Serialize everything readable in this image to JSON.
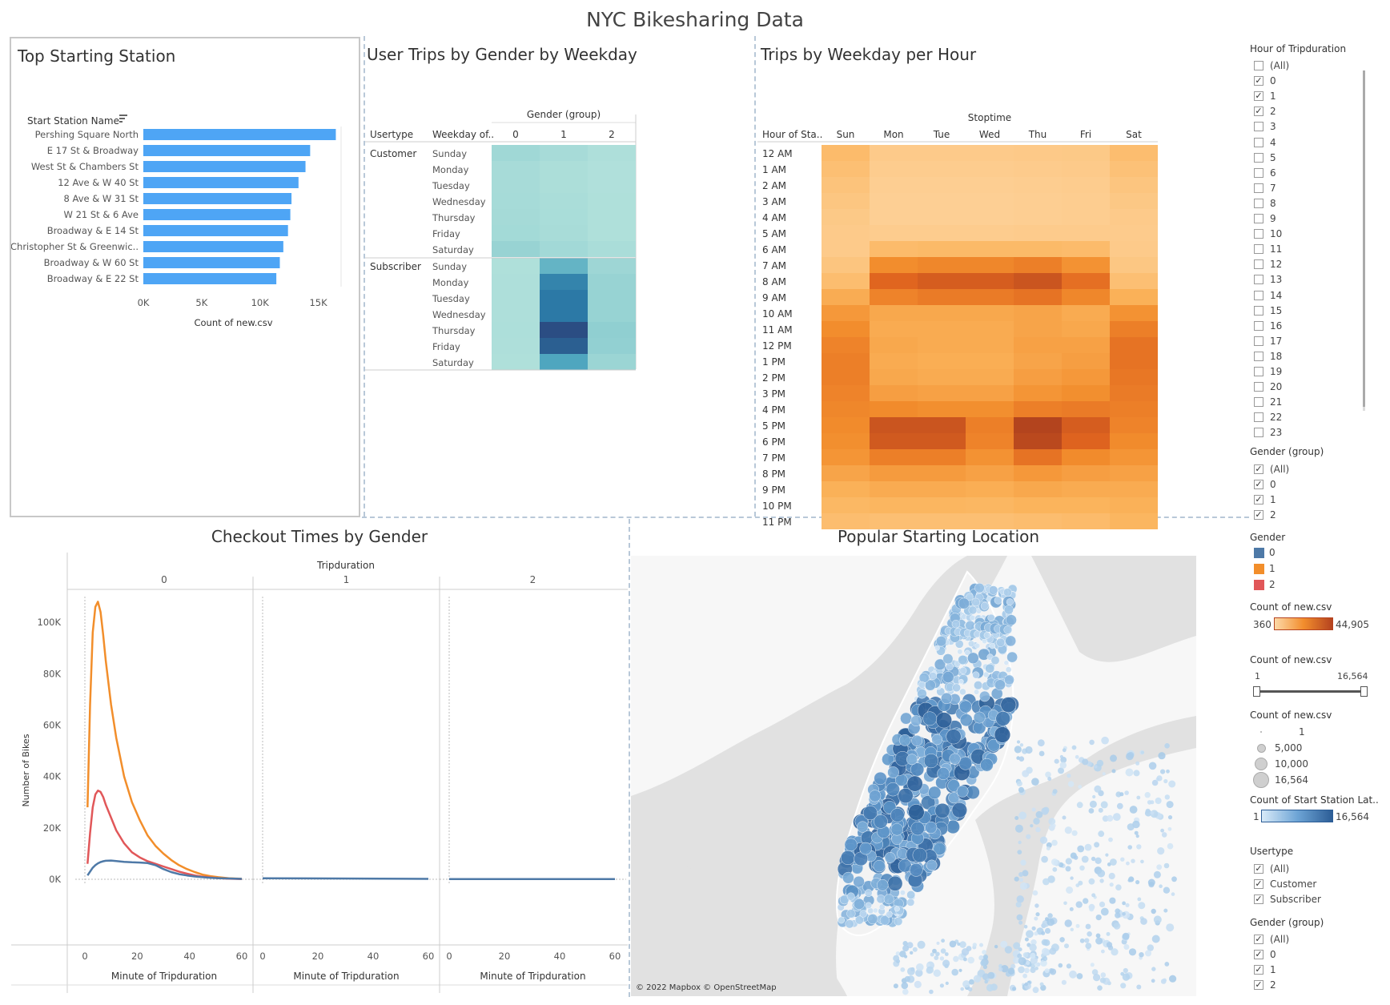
{
  "dashboard_title": "NYC Bikesharing Data",
  "panels": {
    "top_station": {
      "title": "Top Starting Station",
      "header": "Start Station Name",
      "xlabel": "Count of new.csv"
    },
    "gender_weekday": {
      "title": "User Trips by Gender by Weekday",
      "col_group_header": "Gender (group)",
      "row_header_1": "Usertype",
      "row_header_2": "Weekday of..",
      "columns": [
        "0",
        "1",
        "2"
      ],
      "usertypes": [
        "Customer",
        "Subscriber"
      ],
      "weekdays": [
        "Sunday",
        "Monday",
        "Tuesday",
        "Wednesday",
        "Thursday",
        "Friday",
        "Saturday"
      ]
    },
    "weekday_hour": {
      "title": "Trips by Weekday per Hour",
      "col_header": "Stoptime",
      "row_header": "Hour of Sta..",
      "days": [
        "Sun",
        "Mon",
        "Tue",
        "Wed",
        "Thu",
        "Fri",
        "Sat"
      ],
      "hours": [
        "12 AM",
        "1 AM",
        "2 AM",
        "3 AM",
        "4 AM",
        "5 AM",
        "6 AM",
        "7 AM",
        "8 AM",
        "9 AM",
        "10 AM",
        "11 AM",
        "12 PM",
        "1 PM",
        "2 PM",
        "3 PM",
        "4 PM",
        "5 PM",
        "6 PM",
        "7 PM",
        "8 PM",
        "9 PM",
        "10 PM",
        "11 PM"
      ]
    },
    "checkout": {
      "title": "Checkout Times by Gender",
      "col_header": "Tripduration",
      "facets": [
        "0",
        "1",
        "2"
      ],
      "xlabel": "Minute of Tripduration",
      "ylabel": "Number of Bikes",
      "yticks": [
        "0K",
        "20K",
        "40K",
        "60K",
        "80K",
        "100K"
      ],
      "xticks": [
        "0",
        "20",
        "40",
        "60"
      ]
    },
    "map": {
      "title": "Popular Starting Location",
      "attribution": "© 2022 Mapbox © OpenStreetMap",
      "water_color": "#e1e1e1",
      "land_color": "#f7f7f7"
    }
  },
  "sidebar": {
    "hour_filter": {
      "title": "Hour of Tripduration",
      "items": [
        {
          "label": "(All)",
          "checked": false
        },
        {
          "label": "0",
          "checked": true
        },
        {
          "label": "1",
          "checked": true
        },
        {
          "label": "2",
          "checked": true
        },
        {
          "label": "3",
          "checked": false
        },
        {
          "label": "4",
          "checked": false
        },
        {
          "label": "5",
          "checked": false
        },
        {
          "label": "6",
          "checked": false
        },
        {
          "label": "7",
          "checked": false
        },
        {
          "label": "8",
          "checked": false
        },
        {
          "label": "9",
          "checked": false
        },
        {
          "label": "10",
          "checked": false
        },
        {
          "label": "11",
          "checked": false
        },
        {
          "label": "12",
          "checked": false
        },
        {
          "label": "13",
          "checked": false
        },
        {
          "label": "14",
          "checked": false
        },
        {
          "label": "15",
          "checked": false
        },
        {
          "label": "16",
          "checked": false
        },
        {
          "label": "17",
          "checked": false
        },
        {
          "label": "18",
          "checked": false
        },
        {
          "label": "19",
          "checked": false
        },
        {
          "label": "20",
          "checked": false
        },
        {
          "label": "21",
          "checked": false
        },
        {
          "label": "22",
          "checked": false
        },
        {
          "label": "23",
          "checked": false
        }
      ]
    },
    "gender_filter_1": {
      "title": "Gender (group)",
      "items": [
        {
          "label": "(All)",
          "checked": true
        },
        {
          "label": "0",
          "checked": true
        },
        {
          "label": "1",
          "checked": true
        },
        {
          "label": "2",
          "checked": true
        }
      ]
    },
    "gender_legend": {
      "title": "Gender",
      "items": [
        {
          "label": "0",
          "color": "#4e79a7"
        },
        {
          "label": "1",
          "color": "#f28e2b"
        },
        {
          "label": "2",
          "color": "#e15759"
        }
      ]
    },
    "count_orange_legend": {
      "title": "Count of new.csv",
      "min": "360",
      "max": "44,905"
    },
    "count_slider": {
      "title": "Count of new.csv",
      "min": "1",
      "max": "16,564"
    },
    "count_size_legend": {
      "title": "Count of new.csv",
      "items": [
        "1",
        "5,000",
        "10,000",
        "16,564"
      ]
    },
    "start_lat_legend": {
      "title": "Count of Start Station Lat..",
      "min": "1",
      "max": "16,564"
    },
    "usertype_filter": {
      "title": "Usertype",
      "items": [
        {
          "label": "(All)",
          "checked": true
        },
        {
          "label": "Customer",
          "checked": true
        },
        {
          "label": "Subscriber",
          "checked": true
        }
      ]
    },
    "gender_filter_2": {
      "title": "Gender (group)",
      "items": [
        {
          "label": "(All)",
          "checked": true
        },
        {
          "label": "0",
          "checked": true
        },
        {
          "label": "1",
          "checked": true
        },
        {
          "label": "2",
          "checked": true
        }
      ]
    }
  },
  "chart_data": [
    {
      "type": "bar",
      "title": "Top Starting Station",
      "categories": [
        "Pershing Square North",
        "E 17 St & Broadway",
        "West St & Chambers St",
        "12 Ave & W 40 St",
        "8 Ave & W 31 St",
        "W 21 St & 6 Ave",
        "Broadway & E 14 St",
        "Christopher St & Greenwic..",
        "Broadway & W 60 St",
        "Broadway & E 22 St"
      ],
      "values": [
        16500,
        14300,
        13900,
        13300,
        12700,
        12600,
        12400,
        12000,
        11700,
        11400
      ],
      "xlabel": "Count of new.csv",
      "ylabel": "Start Station Name",
      "xticks": [
        "0K",
        "5K",
        "10K",
        "15K"
      ],
      "xlim": [
        0,
        17500
      ],
      "color": "#4ea5f5"
    },
    {
      "type": "heatmap",
      "title": "User Trips by Gender by Weekday",
      "rows": [
        "Customer Sunday",
        "Customer Monday",
        "Customer Tuesday",
        "Customer Wednesday",
        "Customer Thursday",
        "Customer Friday",
        "Customer Saturday",
        "Subscriber Sunday",
        "Subscriber Monday",
        "Subscriber Tuesday",
        "Subscriber Wednesday",
        "Subscriber Thursday",
        "Subscriber Friday",
        "Subscriber Saturday"
      ],
      "columns": [
        "0",
        "1",
        "2"
      ],
      "intensity": [
        [
          0.18,
          0.12,
          0.06
        ],
        [
          0.12,
          0.08,
          0.04
        ],
        [
          0.12,
          0.08,
          0.04
        ],
        [
          0.13,
          0.09,
          0.05
        ],
        [
          0.14,
          0.1,
          0.05
        ],
        [
          0.15,
          0.11,
          0.05
        ],
        [
          0.25,
          0.16,
          0.09
        ],
        [
          0.05,
          0.5,
          0.2
        ],
        [
          0.06,
          0.75,
          0.25
        ],
        [
          0.06,
          0.8,
          0.26
        ],
        [
          0.06,
          0.8,
          0.26
        ],
        [
          0.07,
          1.0,
          0.32
        ],
        [
          0.06,
          0.92,
          0.3
        ],
        [
          0.05,
          0.58,
          0.22
        ]
      ]
    },
    {
      "type": "heatmap",
      "title": "Trips by Weekday per Hour",
      "rows": [
        "12 AM",
        "1 AM",
        "2 AM",
        "3 AM",
        "4 AM",
        "5 AM",
        "6 AM",
        "7 AM",
        "8 AM",
        "9 AM",
        "10 AM",
        "11 AM",
        "12 PM",
        "1 PM",
        "2 PM",
        "3 PM",
        "4 PM",
        "5 PM",
        "6 PM",
        "7 PM",
        "8 PM",
        "9 PM",
        "10 PM",
        "11 PM"
      ],
      "columns": [
        "Sun",
        "Mon",
        "Tue",
        "Wed",
        "Thu",
        "Fri",
        "Sat"
      ],
      "intensity": [
        [
          0.22,
          0.06,
          0.06,
          0.06,
          0.07,
          0.08,
          0.2
        ],
        [
          0.18,
          0.04,
          0.04,
          0.04,
          0.05,
          0.06,
          0.16
        ],
        [
          0.14,
          0.02,
          0.02,
          0.02,
          0.03,
          0.04,
          0.12
        ],
        [
          0.11,
          0.01,
          0.01,
          0.01,
          0.02,
          0.03,
          0.09
        ],
        [
          0.08,
          0.01,
          0.01,
          0.01,
          0.02,
          0.03,
          0.06
        ],
        [
          0.06,
          0.04,
          0.04,
          0.04,
          0.05,
          0.05,
          0.05
        ],
        [
          0.06,
          0.22,
          0.24,
          0.24,
          0.24,
          0.22,
          0.06
        ],
        [
          0.12,
          0.55,
          0.58,
          0.58,
          0.62,
          0.52,
          0.1
        ],
        [
          0.2,
          0.75,
          0.8,
          0.8,
          0.85,
          0.7,
          0.18
        ],
        [
          0.35,
          0.6,
          0.64,
          0.64,
          0.68,
          0.58,
          0.32
        ],
        [
          0.48,
          0.38,
          0.38,
          0.38,
          0.4,
          0.36,
          0.52
        ],
        [
          0.55,
          0.36,
          0.36,
          0.36,
          0.4,
          0.38,
          0.62
        ],
        [
          0.6,
          0.38,
          0.36,
          0.36,
          0.42,
          0.42,
          0.68
        ],
        [
          0.62,
          0.36,
          0.34,
          0.34,
          0.4,
          0.44,
          0.68
        ],
        [
          0.62,
          0.38,
          0.36,
          0.36,
          0.44,
          0.48,
          0.66
        ],
        [
          0.6,
          0.44,
          0.42,
          0.42,
          0.5,
          0.54,
          0.64
        ],
        [
          0.58,
          0.56,
          0.54,
          0.54,
          0.62,
          0.64,
          0.62
        ],
        [
          0.56,
          0.85,
          0.85,
          0.62,
          0.95,
          0.8,
          0.6
        ],
        [
          0.54,
          0.82,
          0.82,
          0.6,
          0.92,
          0.76,
          0.56
        ],
        [
          0.5,
          0.62,
          0.62,
          0.52,
          0.68,
          0.56,
          0.5
        ],
        [
          0.4,
          0.46,
          0.46,
          0.42,
          0.48,
          0.44,
          0.42
        ],
        [
          0.32,
          0.36,
          0.36,
          0.34,
          0.38,
          0.36,
          0.36
        ],
        [
          0.26,
          0.28,
          0.28,
          0.27,
          0.3,
          0.3,
          0.32
        ],
        [
          0.2,
          0.18,
          0.18,
          0.18,
          0.2,
          0.22,
          0.28
        ]
      ]
    },
    {
      "type": "line",
      "title": "Checkout Times by Gender",
      "xlabel": "Minute of Tripduration",
      "ylabel": "Number of Bikes",
      "xlim": [
        0,
        60
      ],
      "ylim": [
        0,
        110000
      ],
      "facets": [
        {
          "name": "0",
          "series": [
            {
              "name": "1",
              "color": "#f28e2b",
              "x": [
                1,
                2,
                3,
                4,
                5,
                6,
                7,
                8,
                10,
                12,
                15,
                18,
                21,
                24,
                27,
                30,
                33,
                36,
                39,
                42,
                45,
                48,
                51,
                55,
                60
              ],
              "y": [
                28000,
                68000,
                96000,
                106000,
                108000,
                104000,
                95000,
                85000,
                68000,
                55000,
                40000,
                30000,
                23000,
                17000,
                13000,
                10000,
                7500,
                5500,
                4000,
                2800,
                1800,
                1200,
                800,
                400,
                200
              ]
            },
            {
              "name": "2",
              "color": "#e15759",
              "x": [
                1,
                2,
                3,
                4,
                5,
                6,
                7,
                8,
                10,
                12,
                15,
                18,
                21,
                24,
                27,
                30,
                33,
                36,
                39,
                42,
                45,
                48,
                51,
                55,
                60
              ],
              "y": [
                6000,
                18000,
                28000,
                33000,
                34500,
                34000,
                32000,
                29000,
                24000,
                19000,
                14000,
                10500,
                8500,
                7000,
                6000,
                5000,
                4000,
                3000,
                2200,
                1500,
                1000,
                700,
                450,
                250,
                100
              ]
            },
            {
              "name": "0",
              "color": "#4e79a7",
              "x": [
                1,
                2,
                3,
                4,
                5,
                6,
                7,
                8,
                10,
                12,
                15,
                18,
                21,
                24,
                27,
                30,
                33,
                36,
                39,
                42,
                45,
                48,
                51,
                55,
                60
              ],
              "y": [
                1500,
                3000,
                4500,
                5500,
                6200,
                6700,
                7000,
                7200,
                7300,
                7100,
                6800,
                6600,
                6500,
                6300,
                5500,
                4000,
                2800,
                2000,
                1500,
                1100,
                800,
                600,
                450,
                300,
                150
              ]
            }
          ]
        },
        {
          "name": "1",
          "series": [
            {
              "name": "0",
              "color": "#4e79a7",
              "x": [
                0,
                60
              ],
              "y": [
                400,
                150
              ]
            }
          ]
        },
        {
          "name": "2",
          "series": [
            {
              "name": "0",
              "color": "#4e79a7",
              "x": [
                0,
                60
              ],
              "y": [
                100,
                100
              ]
            }
          ]
        }
      ]
    }
  ]
}
